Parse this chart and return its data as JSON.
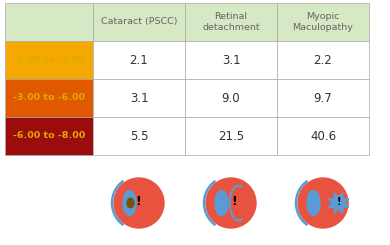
{
  "col_headers": [
    "Cataract (PSCC)",
    "Retinal\ndetachment",
    "Myopic\nMaculopathy"
  ],
  "row_labels": [
    "-1.00 to -3.00",
    "-3.00 to -6.00",
    "-6.00 to -8.00"
  ],
  "row_colors": [
    "#F5A800",
    "#E05800",
    "#9B0C0C"
  ],
  "values": [
    [
      "2.1",
      "3.1",
      "2.2"
    ],
    [
      "3.1",
      "9.0",
      "9.7"
    ],
    [
      "5.5",
      "21.5",
      "40.6"
    ]
  ],
  "header_bg": "#D6E8C4",
  "cell_bg": "#FFFFFF",
  "grid_color": "#AAAAAA",
  "header_text_color": "#666666",
  "value_text_color": "#333333",
  "row_label_text_color": "#DDAA00",
  "background_color": "#FFFFFF",
  "eye_red": "#E85340",
  "eye_blue": "#5B9BD5",
  "eye_brown": "#7B5200"
}
